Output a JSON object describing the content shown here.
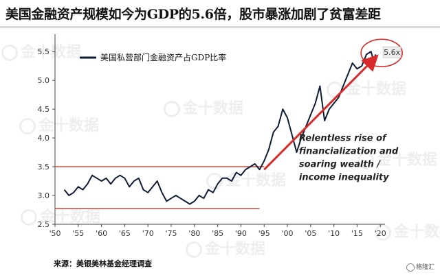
{
  "header": {
    "title": "美国金融资产规模如今为GDP的5.6倍，股市暴涨加剧了贫富差距"
  },
  "footer": {
    "source": "来源：美银美林基金经理调查"
  },
  "watermark": {
    "text": "金十数据",
    "corner_brand": "格隆汇"
  },
  "chart_data": {
    "type": "line",
    "title": "",
    "xlabel": "",
    "ylabel": "",
    "xlim": [
      1950,
      2021
    ],
    "ylim": [
      2.5,
      5.8
    ],
    "x_ticks": [
      1950,
      1955,
      1960,
      1965,
      1970,
      1975,
      1980,
      1985,
      1990,
      1995,
      2000,
      2005,
      2010,
      2015,
      2020
    ],
    "x_tick_labels": [
      "'50",
      "'55",
      "'60",
      "'65",
      "'70",
      "'75",
      "'80",
      "'85",
      "'90",
      "'95",
      "'00",
      "'05",
      "'10",
      "'15",
      "'20"
    ],
    "y_ticks": [
      2.5,
      3.0,
      3.5,
      4.0,
      4.5,
      5.0,
      5.5
    ],
    "y_tick_labels": [
      "2.5",
      "3.0",
      "3.5",
      "4.0",
      "4.5",
      "5.0",
      "5.5"
    ],
    "grid": false,
    "legend_position": "top-left",
    "series": [
      {
        "name": "美国私营部门金融资产占GDP比率",
        "color": "#0d1b33",
        "x": [
          1952,
          1953,
          1954,
          1955,
          1956,
          1957,
          1958,
          1959,
          1960,
          1961,
          1962,
          1963,
          1964,
          1965,
          1966,
          1967,
          1968,
          1969,
          1970,
          1971,
          1972,
          1973,
          1974,
          1975,
          1976,
          1977,
          1978,
          1979,
          1980,
          1981,
          1982,
          1983,
          1984,
          1985,
          1986,
          1987,
          1988,
          1989,
          1990,
          1991,
          1992,
          1993,
          1994,
          1995,
          1996,
          1997,
          1998,
          1999,
          2000,
          2001,
          2002,
          2003,
          2004,
          2005,
          2006,
          2007,
          2008,
          2009,
          2010,
          2011,
          2012,
          2013,
          2014,
          2015,
          2016,
          2017,
          2018,
          2018.5,
          2019
        ],
        "y": [
          3.1,
          3.0,
          3.05,
          3.15,
          3.1,
          3.2,
          3.35,
          3.3,
          3.25,
          3.3,
          3.2,
          3.3,
          3.35,
          3.3,
          3.15,
          3.25,
          3.3,
          3.1,
          3.05,
          3.15,
          3.25,
          3.05,
          2.9,
          2.95,
          3.0,
          2.95,
          2.9,
          2.85,
          2.9,
          3.0,
          2.95,
          3.1,
          3.05,
          3.2,
          3.3,
          3.3,
          3.25,
          3.4,
          3.35,
          3.45,
          3.5,
          3.55,
          3.45,
          3.6,
          3.8,
          4.1,
          4.2,
          4.5,
          4.35,
          4.05,
          3.75,
          4.0,
          4.2,
          4.4,
          4.6,
          4.9,
          4.3,
          4.5,
          4.6,
          4.7,
          4.9,
          5.1,
          5.3,
          5.2,
          5.25,
          5.45,
          5.5,
          5.35,
          5.45
        ]
      }
    ],
    "reference_lines": [
      {
        "y": 3.5,
        "x_start": 1950,
        "x_end": 1995,
        "color": "#c0392b"
      },
      {
        "y": 2.77,
        "x_start": 1950,
        "x_end": 1994,
        "color": "#c0392b"
      }
    ],
    "trend_arrow": {
      "x_start": 1995,
      "y_start": 3.45,
      "x_end": 2019,
      "y_end": 5.4,
      "color": "#d92b2b"
    },
    "highlight": {
      "x": 2018.5,
      "y": 5.5,
      "label": "5.6x",
      "color": "#d92b2b"
    },
    "annotation": {
      "lines": [
        "Relentless rise of",
        "financialization and",
        "soaring wealth /",
        "income inequality"
      ],
      "anchor_x": 2002.5,
      "anchor_y": 3.95
    }
  }
}
